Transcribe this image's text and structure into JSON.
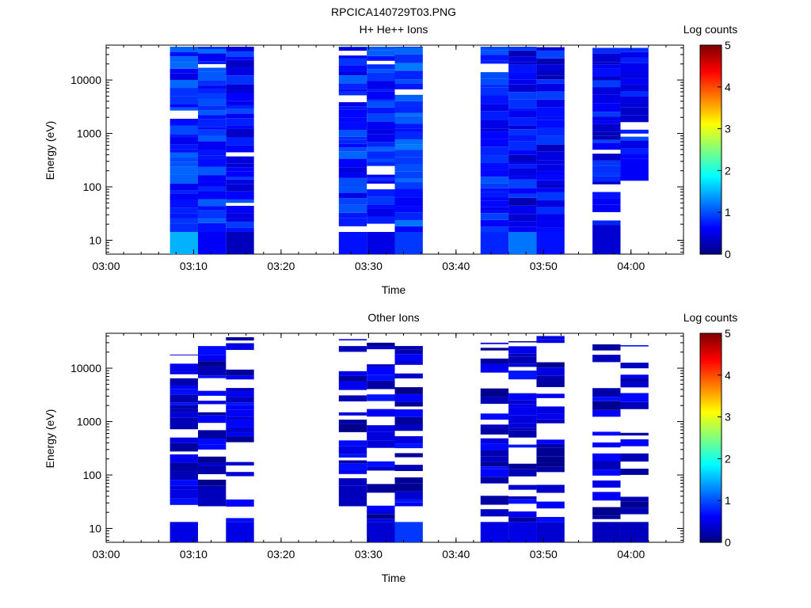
{
  "page_title": "RPCICA140729T03.PNG",
  "colors": {
    "background": "#ffffff",
    "axis": "#000000",
    "colormap": [
      "#00007f",
      "#0000ff",
      "#007fff",
      "#00ffff",
      "#7fff7f",
      "#ffff00",
      "#ff7f00",
      "#ff0000",
      "#7f0000"
    ]
  },
  "chart_data": [
    {
      "type": "heatmap",
      "title": "H+ He++ Ions",
      "xlabel": "Time",
      "ylabel": "Energy (eV)",
      "yscale": "log",
      "ylim": [
        5.5,
        45000
      ],
      "xlim": [
        "03:00",
        "04:06"
      ],
      "x_ticks": [
        "03:00",
        "03:10",
        "03:20",
        "03:30",
        "03:40",
        "03:50",
        "04:00"
      ],
      "y_ticks": [
        "10",
        "100",
        "1000",
        "10000"
      ],
      "colorbar": {
        "label": "Log counts",
        "range": [
          0,
          5
        ],
        "ticks": [
          "0",
          "1",
          "2",
          "3",
          "4",
          "5"
        ]
      },
      "bins": [
        {
          "start": "03:07.3",
          "end": "03:10.5"
        },
        {
          "start": "03:10.5",
          "end": "03:13.7"
        },
        {
          "start": "03:13.7",
          "end": "03:16.9"
        },
        {
          "start": "03:26.6",
          "end": "03:29.8"
        },
        {
          "start": "03:29.8",
          "end": "03:33.0"
        },
        {
          "start": "03:33.0",
          "end": "03:36.2"
        },
        {
          "start": "03:42.8",
          "end": "03:46.0"
        },
        {
          "start": "03:46.0",
          "end": "03:49.2"
        },
        {
          "start": "03:49.2",
          "end": "03:52.4"
        },
        {
          "start": "03:55.6",
          "end": "03:58.8"
        },
        {
          "start": "03:58.8",
          "end": "04:02.0"
        }
      ],
      "log_counts_summary": [
        {
          "bin": 0,
          "emin": 5.5,
          "emax": 42000,
          "low_energy_value": 1.5,
          "typical": 0.8
        },
        {
          "bin": 1,
          "emin": 5.5,
          "emax": 42000,
          "low_energy_value": 0.6,
          "typical": 0.8
        },
        {
          "bin": 2,
          "emin": 5.5,
          "emax": 42000,
          "low_energy_value": 0.3,
          "typical": 0.7
        },
        {
          "bin": 3,
          "emin": 5.5,
          "emax": 42000,
          "low_energy_value": 0.7,
          "typical": 0.8
        },
        {
          "bin": 4,
          "emin": 5.5,
          "emax": 42000,
          "low_energy_value": 0.5,
          "typical": 0.8
        },
        {
          "bin": 5,
          "emin": 5.5,
          "emax": 42000,
          "low_energy_value": 0.9,
          "typical": 0.9
        },
        {
          "bin": 6,
          "emin": 5.5,
          "emax": 42000,
          "low_energy_value": 0.8,
          "typical": 0.7
        },
        {
          "bin": 7,
          "emin": 5.5,
          "emax": 42000,
          "low_energy_value": 1.2,
          "typical": 0.6
        },
        {
          "bin": 8,
          "emin": 5.5,
          "emax": 42000,
          "low_energy_value": 0.7,
          "typical": 0.6
        },
        {
          "bin": 9,
          "emin": 5.5,
          "emax": 40000,
          "low_energy_value": 0.4,
          "typical": 0.6
        },
        {
          "bin": 10,
          "emin": 130,
          "emax": 40000,
          "low_energy_value": 0.6,
          "typical": 0.7
        }
      ]
    },
    {
      "type": "heatmap",
      "title": "Other Ions",
      "xlabel": "Time",
      "ylabel": "Energy (eV)",
      "yscale": "log",
      "ylim": [
        5.5,
        45000
      ],
      "xlim": [
        "03:00",
        "04:06"
      ],
      "x_ticks": [
        "03:00",
        "03:10",
        "03:20",
        "03:30",
        "03:40",
        "03:50",
        "04:00"
      ],
      "y_ticks": [
        "10",
        "100",
        "1000",
        "10000"
      ],
      "colorbar": {
        "label": "Log counts",
        "range": [
          0,
          5
        ],
        "ticks": [
          "0",
          "1",
          "2",
          "3",
          "4",
          "5"
        ]
      },
      "bins": [
        {
          "start": "03:07.3",
          "end": "03:10.5"
        },
        {
          "start": "03:10.5",
          "end": "03:13.7"
        },
        {
          "start": "03:13.7",
          "end": "03:16.9"
        },
        {
          "start": "03:26.6",
          "end": "03:29.8"
        },
        {
          "start": "03:29.8",
          "end": "03:33.0"
        },
        {
          "start": "03:33.0",
          "end": "03:36.2"
        },
        {
          "start": "03:42.8",
          "end": "03:46.0"
        },
        {
          "start": "03:46.0",
          "end": "03:49.2"
        },
        {
          "start": "03:49.2",
          "end": "03:52.4"
        },
        {
          "start": "03:55.6",
          "end": "03:58.8"
        },
        {
          "start": "03:58.8",
          "end": "04:02.0"
        }
      ],
      "log_counts_summary": [
        {
          "bin": 0,
          "emin": 5.5,
          "emax": 18000,
          "low_energy_value": 0.5,
          "typical": 0.4
        },
        {
          "bin": 1,
          "emin": 26,
          "emax": 30000,
          "low_energy_value": 0.3,
          "typical": 0.4
        },
        {
          "bin": 2,
          "emin": 5.5,
          "emax": 38000,
          "low_energy_value": 0.5,
          "typical": 0.4
        },
        {
          "bin": 3,
          "emin": 26,
          "emax": 35000,
          "low_energy_value": 0.3,
          "typical": 0.4
        },
        {
          "bin": 4,
          "emin": 5.5,
          "emax": 30000,
          "low_energy_value": 0.4,
          "typical": 0.4
        },
        {
          "bin": 5,
          "emin": 5.5,
          "emax": 26000,
          "low_energy_value": 0.9,
          "typical": 0.4
        },
        {
          "bin": 6,
          "emin": 5.5,
          "emax": 30000,
          "low_energy_value": 0.5,
          "typical": 0.4
        },
        {
          "bin": 7,
          "emin": 5.5,
          "emax": 32000,
          "low_energy_value": 0.5,
          "typical": 0.4
        },
        {
          "bin": 8,
          "emin": 5.5,
          "emax": 40000,
          "low_energy_value": 0.4,
          "typical": 0.4
        },
        {
          "bin": 9,
          "emin": 5.5,
          "emax": 30000,
          "low_energy_value": 0.3,
          "typical": 0.4
        },
        {
          "bin": 10,
          "emin": 5.5,
          "emax": 27000,
          "low_energy_value": 0.3,
          "typical": 0.4
        }
      ]
    }
  ]
}
